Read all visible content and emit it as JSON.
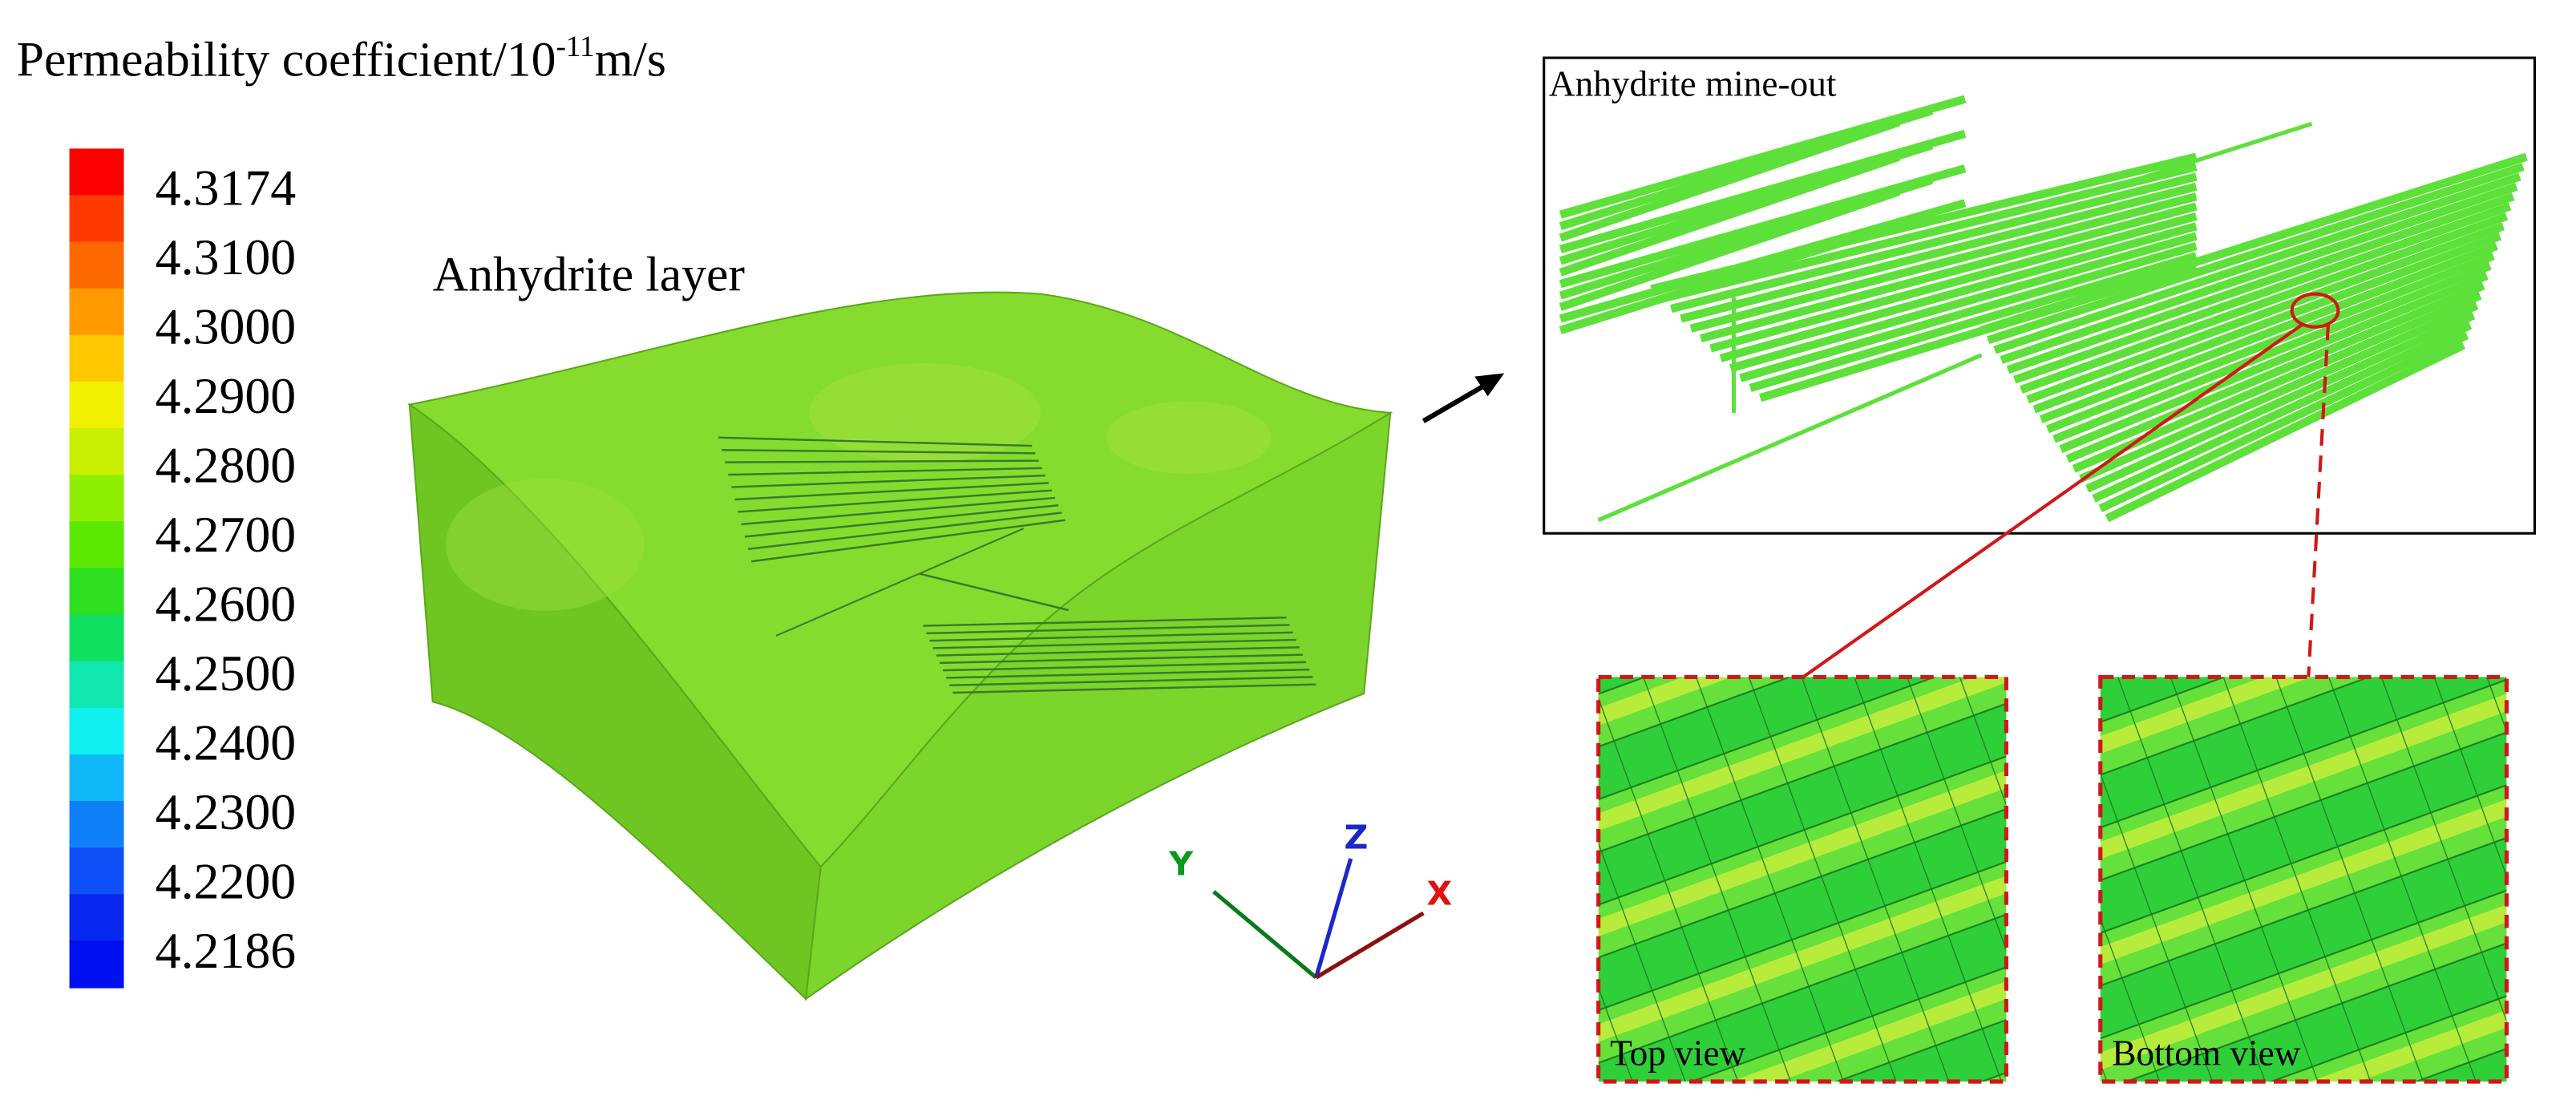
{
  "legend": {
    "title": "Permeability coefficient/10",
    "title_exponent": "-11",
    "title_unit": "m/s",
    "labels": [
      "4.3174",
      "4.3100",
      "4.3000",
      "4.2900",
      "4.2800",
      "4.2700",
      "4.2600",
      "4.2500",
      "4.2400",
      "4.2300",
      "4.2200",
      "4.2186"
    ]
  },
  "model": {
    "label": "Anhydrite layer",
    "axes": [
      "Y",
      "Z",
      "X"
    ]
  },
  "detail": {
    "label": "Anhydrite mine-out",
    "insets": [
      "Top view",
      "Bottom view"
    ]
  }
}
